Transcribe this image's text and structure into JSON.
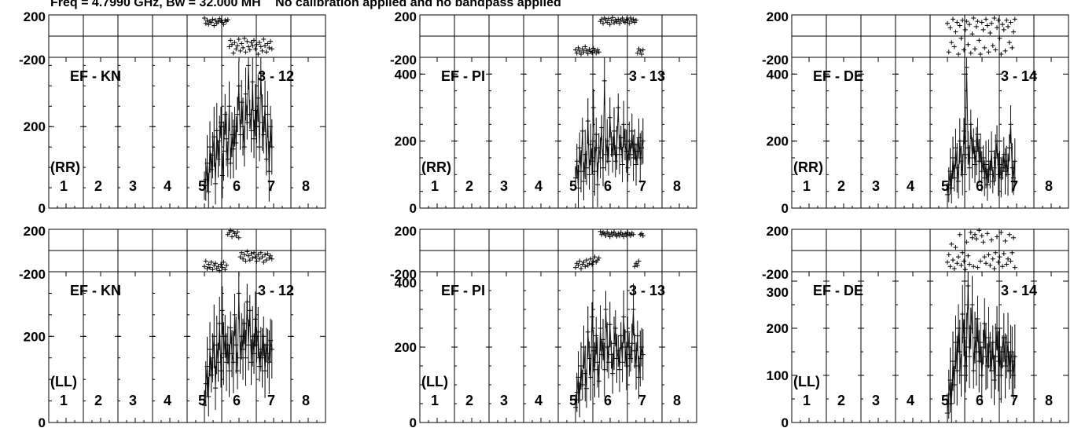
{
  "header": {
    "freq": "Freq = 4.7990 GHz, Bw = 32.000 MH",
    "note": "No calibration applied and no bandpass applied"
  },
  "channel_labels": [
    "1",
    "2",
    "3",
    "4",
    "5",
    "6",
    "7",
    "8"
  ],
  "chart_data": [
    {
      "type": "scatter",
      "baseline": "EF - KN",
      "pair": "3 - 12",
      "pol": "(RR)",
      "phase": {
        "ylim": [
          -200,
          200
        ],
        "ticks": [
          200,
          -200
        ]
      },
      "amp": {
        "ylim": [
          0,
          370
        ],
        "ticks": [
          0,
          200
        ],
        "label_ticks": [
          0,
          200,
          -200
        ]
      },
      "series": [
        {
          "x_range": [
            5.0,
            6.95
          ],
          "amplitude": [
            55,
            70,
            110,
            40,
            150,
            95,
            130,
            175,
            60,
            190,
            120,
            165,
            210,
            80,
            140,
            230,
            170,
            120,
            250,
            110,
            180,
            145,
            200,
            160,
            230,
            300,
            180,
            260,
            200,
            150,
            280,
            210,
            350,
            230,
            190,
            310,
            170,
            240,
            200,
            270,
            150,
            330,
            210,
            180,
            250,
            120,
            230,
            90,
            200,
            150
          ],
          "phase": [
            170,
            120,
            150,
            110,
            140,
            130,
            160,
            100,
            150,
            120,
            135,
            165,
            145,
            130,
            110,
            150,
            140,
            155,
            -100,
            -40,
            -80,
            -160,
            -60,
            -120,
            -90,
            -30,
            -140,
            -70,
            -110,
            -20,
            -150,
            -50,
            -100,
            -130,
            -60,
            -90,
            -40,
            -120,
            -80,
            -170,
            -60,
            -100,
            -140,
            -30,
            -90,
            -150,
            -70,
            -110,
            -50,
            -120
          ]
        }
      ]
    },
    {
      "type": "scatter",
      "baseline": "EF - KN",
      "pair": "3 - 12",
      "pol": "(LL)",
      "phase": {
        "ylim": [
          -200,
          200
        ],
        "ticks": [
          200,
          -200
        ]
      },
      "amp": {
        "ylim": [
          0,
          350
        ],
        "ticks": [
          0,
          200
        ],
        "label_ticks": [
          0,
          200,
          -200
        ]
      },
      "series": [
        {
          "x_range": [
            5.0,
            6.95
          ],
          "amplitude": [
            40,
            90,
            130,
            60,
            170,
            110,
            150,
            200,
            80,
            180,
            140,
            230,
            120,
            260,
            160,
            200,
            140,
            180,
            120,
            220,
            160,
            140,
            250,
            180,
            120,
            300,
            150,
            200,
            170,
            230,
            150,
            280,
            180,
            260,
            140,
            200,
            160,
            240,
            180,
            210,
            130,
            170,
            150,
            200,
            120,
            180,
            160,
            140,
            190,
            170
          ],
          "phase": [
            -150,
            -100,
            -170,
            -130,
            -160,
            -110,
            -180,
            -140,
            -120,
            -170,
            -150,
            -190,
            -130,
            -160,
            -110,
            -180,
            -140,
            150,
            170,
            190,
            130,
            180,
            160,
            140,
            175,
            120,
            -60,
            -20,
            -80,
            -40,
            -100,
            -10,
            -50,
            -90,
            -30,
            -70,
            -20,
            -60,
            -100,
            -40,
            -80,
            -20,
            -60,
            -110,
            -40,
            -90,
            -30,
            -70,
            -50,
            -80
          ]
        }
      ]
    },
    {
      "type": "scatter",
      "baseline": "EF - PI",
      "pair": "3 - 13",
      "pol": "(RR)",
      "phase": {
        "ylim": [
          -200,
          200
        ],
        "ticks": [
          200,
          -200
        ]
      },
      "amp": {
        "ylim": [
          0,
          450
        ],
        "ticks": [
          0,
          200,
          400
        ],
        "label_ticks": [
          0,
          200,
          400,
          -200
        ]
      },
      "series": [
        {
          "x_range": [
            5.0,
            6.95
          ],
          "amplitude": [
            90,
            140,
            60,
            180,
            110,
            230,
            80,
            160,
            120,
            260,
            100,
            190,
            140,
            300,
            110,
            220,
            70,
            180,
            150,
            240,
            120,
            380,
            160,
            200,
            140,
            270,
            190,
            160,
            230,
            140,
            180,
            300,
            160,
            210,
            130,
            250,
            190,
            170,
            120,
            200,
            160,
            230,
            150,
            190,
            130,
            170,
            210,
            150,
            180,
            200
          ],
          "phase": [
            -130,
            -160,
            -110,
            -140,
            -170,
            -120,
            -150,
            -100,
            -135,
            -165,
            -125,
            -145,
            -155,
            -115,
            -140,
            -160,
            -130,
            -150,
            140,
            160,
            120,
            170,
            150,
            130,
            165,
            110,
            145,
            175,
            125,
            155,
            135,
            160,
            120,
            150,
            170,
            140,
            130,
            160,
            150,
            120,
            170,
            140,
            160,
            130,
            150,
            -160,
            -120,
            -140,
            -170,
            -130
          ]
        }
      ]
    },
    {
      "type": "scatter",
      "baseline": "EF - PI",
      "pair": "3 - 13",
      "pol": "(LL)",
      "phase": {
        "ylim": [
          -200,
          200
        ],
        "ticks": [
          200,
          -200
        ]
      },
      "amp": {
        "ylim": [
          0,
          400
        ],
        "ticks": [
          0,
          200,
          400
        ],
        "label_ticks": [
          0,
          200,
          -200,
          400
        ]
      },
      "series": [
        {
          "x_range": [
            5.0,
            6.95
          ],
          "amplitude": [
            40,
            80,
            120,
            60,
            150,
            100,
            200,
            130,
            90,
            240,
            170,
            120,
            280,
            190,
            140,
            230,
            160,
            110,
            250,
            180,
            220,
            140,
            300,
            200,
            160,
            260,
            180,
            130,
            210,
            250,
            170,
            190,
            140,
            230,
            160,
            280,
            200,
            150,
            240,
            180,
            170,
            210,
            300,
            190,
            150,
            230,
            120,
            170,
            200,
            180
          ],
          "phase": [
            -160,
            -120,
            -140,
            -100,
            -170,
            -130,
            -110,
            -150,
            -90,
            -140,
            -120,
            -80,
            -130,
            -100,
            -60,
            -110,
            -90,
            -70,
            180,
            150,
            170,
            160,
            140,
            175,
            155,
            130,
            165,
            145,
            175,
            150,
            135,
            160,
            140,
            170,
            150,
            130,
            160,
            145,
            170,
            155,
            140,
            165,
            150,
            -150,
            -120,
            -140,
            -100,
            150,
            160,
            140
          ]
        }
      ]
    },
    {
      "type": "scatter",
      "baseline": "EF - DE",
      "pair": "3 - 14",
      "pol": "(RR)",
      "phase": {
        "ylim": [
          -200,
          200
        ],
        "ticks": [
          200,
          -200
        ]
      },
      "amp": {
        "ylim": [
          0,
          450
        ],
        "ticks": [
          0,
          200,
          400
        ],
        "label_ticks": [
          0,
          200,
          -200,
          400
        ]
      },
      "series": [
        {
          "x_range": [
            5.0,
            6.95
          ],
          "amplitude": [
            40,
            70,
            110,
            60,
            150,
            90,
            180,
            120,
            80,
            200,
            140,
            100,
            230,
            160,
            420,
            180,
            120,
            250,
            150,
            200,
            130,
            170,
            220,
            140,
            180,
            110,
            150,
            90,
            130,
            70,
            140,
            100,
            170,
            80,
            120,
            150,
            200,
            100,
            130,
            90,
            120,
            160,
            110,
            140,
            100,
            180,
            250,
            120,
            90,
            140
          ],
          "phase": [
            120,
            -150,
            80,
            -60,
            160,
            -100,
            40,
            130,
            -170,
            100,
            -20,
            150,
            -130,
            60,
            140,
            -80,
            110,
            -160,
            20,
            170,
            -120,
            90,
            140,
            -40,
            -170,
            130,
            60,
            -110,
            160,
            100,
            -150,
            30,
            120,
            -90,
            170,
            -130,
            80,
            150,
            -20,
            -170,
            110,
            60,
            -140,
            150,
            90,
            -60,
            130,
            -110,
            40,
            160
          ]
        }
      ]
    },
    {
      "type": "scatter",
      "baseline": "EF - DE",
      "pair": "3 - 14",
      "pol": "(LL)",
      "phase": {
        "ylim": [
          -200,
          200
        ],
        "ticks": [
          200,
          -200
        ]
      },
      "amp": {
        "ylim": [
          0,
          320
        ],
        "ticks": [
          0,
          100,
          200,
          300
        ],
        "label_ticks": [
          0,
          100,
          200,
          300,
          -200
        ]
      },
      "series": [
        {
          "x_range": [
            5.0,
            6.95
          ],
          "amplitude": [
            20,
            60,
            90,
            40,
            130,
            80,
            170,
            110,
            200,
            150,
            100,
            230,
            180,
            120,
            160,
            290,
            140,
            200,
            250,
            110,
            180,
            150,
            220,
            130,
            170,
            100,
            160,
            210,
            140,
            120,
            180,
            150,
            110,
            170,
            90,
            140,
            200,
            130,
            160,
            100,
            150,
            180,
            120,
            140,
            170,
            110,
            150,
            130,
            100,
            140
          ],
          "phase": [
            -110,
            -40,
            -150,
            60,
            -90,
            -170,
            30,
            -120,
            -60,
            150,
            -140,
            -20,
            -100,
            -180,
            80,
            -50,
            -130,
            170,
            120,
            -150,
            150,
            110,
            -160,
            190,
            -100,
            140,
            80,
            -60,
            -120,
            160,
            -40,
            -140,
            100,
            -80,
            -170,
            -20,
            130,
            -110,
            -60,
            170,
            -150,
            -30,
            90,
            -130,
            -80,
            150,
            -100,
            -20,
            120,
            -160
          ]
        }
      ]
    }
  ]
}
